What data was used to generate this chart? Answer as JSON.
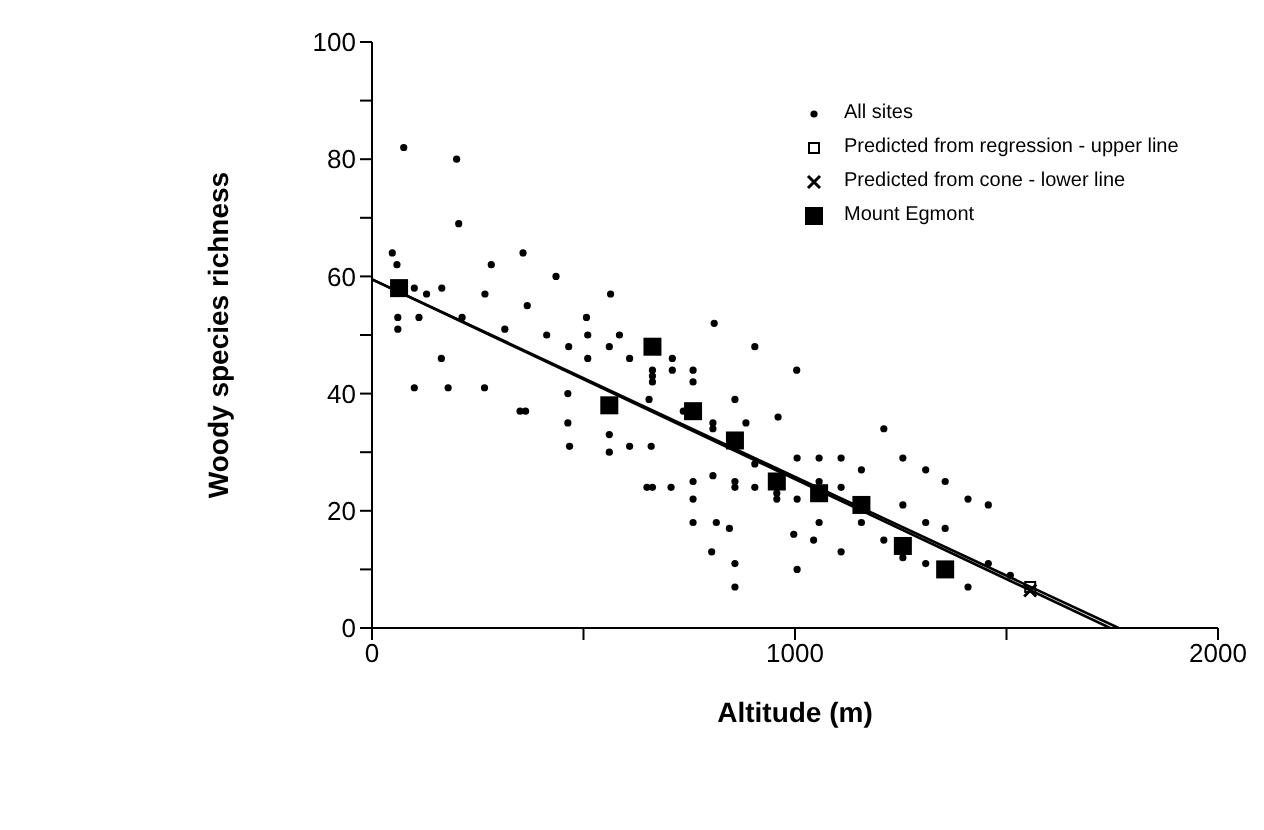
{
  "chart_data": {
    "type": "scatter",
    "xlabel": "Altitude (m)",
    "ylabel": "Woody species richness",
    "xlim": [
      0,
      2000
    ],
    "xticks": [
      0,
      {
        "value": 500,
        "label": null
      },
      1000,
      {
        "value": 1500,
        "label": null
      },
      2000
    ],
    "ylim": [
      0,
      100
    ],
    "yticks": [
      0,
      {
        "value": 10,
        "label": null
      },
      20,
      {
        "value": 30,
        "label": null
      },
      40,
      {
        "value": 50,
        "label": null
      },
      60,
      {
        "value": 70,
        "label": null
      },
      80,
      {
        "value": 90,
        "label": null
      },
      100
    ],
    "legend": "top right",
    "series": [
      {
        "name": "All sites",
        "marker": "circle",
        "color": "#000000",
        "x": [
          75,
          200,
          205,
          48,
          59,
          100,
          129,
          165,
          61,
          61,
          111,
          213,
          267,
          282,
          357,
          367,
          314,
          435,
          164,
          100,
          180,
          266,
          413,
          465,
          507,
          510,
          510,
          564,
          561,
          585,
          609,
          663,
          663,
          663,
          710,
          710,
          759,
          759,
          809,
          905,
          1004,
          463,
          655,
          858,
          350,
          363,
          463,
          467,
          561,
          561,
          609,
          660,
          736,
          806,
          806,
          884,
          905,
          960,
          1005,
          957,
          957,
          905,
          858,
          858,
          806,
          759,
          759,
          707,
          650,
          663,
          759,
          814,
          845,
          803,
          858,
          858,
          1005,
          997,
          1005,
          1057,
          1109,
          1210,
          1157,
          1255,
          1309,
          1355,
          1409,
          1457,
          1057,
          1109,
          1255,
          1057,
          1044,
          1109,
          1157,
          1210,
          1309,
          1355,
          1255,
          1309,
          1409,
          1457,
          1509
        ],
        "values": [
          82,
          80,
          69,
          64,
          62,
          58,
          57,
          58,
          53,
          51,
          53,
          53,
          57,
          62,
          64,
          55,
          51,
          60,
          46,
          41,
          41,
          41,
          50,
          48,
          53,
          50,
          46,
          57,
          48,
          50,
          46,
          44,
          43,
          42,
          46,
          44,
          44,
          42,
          52,
          48,
          44,
          40,
          39,
          39,
          37,
          37,
          35,
          31,
          33,
          30,
          31,
          31,
          37,
          35,
          34,
          35,
          28,
          36,
          29,
          23,
          22,
          24,
          25,
          24,
          26,
          25,
          22,
          24,
          24,
          24,
          18,
          18,
          17,
          13,
          11,
          7,
          22,
          16,
          10,
          29,
          29,
          34,
          27,
          29,
          27,
          25,
          22,
          21,
          25,
          24,
          21,
          18,
          15,
          13,
          18,
          15,
          18,
          17,
          12,
          11,
          7,
          11,
          9
        ]
      },
      {
        "name": "Predicted from regression - upper line",
        "marker": "square",
        "color": "#000000",
        "x": [
          1556
        ],
        "values": [
          7
        ]
      },
      {
        "name": "Predicted from cone - lower line",
        "marker": "cross",
        "color": "#000000",
        "x": [
          1556
        ],
        "values": [
          6.4
        ]
      },
      {
        "name": "Mount Egmont",
        "marker": "square",
        "color": "#000000",
        "x": [
          64,
          663,
          561,
          759,
          858,
          957,
          1057,
          1157,
          1255,
          1355
        ],
        "values": [
          58,
          48,
          38,
          37,
          32,
          25,
          23,
          21,
          14,
          10
        ]
      },
      {
        "type": "line",
        "marker": "none",
        "color": "#000000",
        "x": [
          0,
          1765
        ],
        "values": [
          59.5,
          0
        ]
      },
      {
        "type": "line",
        "marker": "none",
        "color": "#000000",
        "x": [
          0,
          1745
        ],
        "values": [
          59.5,
          0
        ]
      }
    ]
  }
}
